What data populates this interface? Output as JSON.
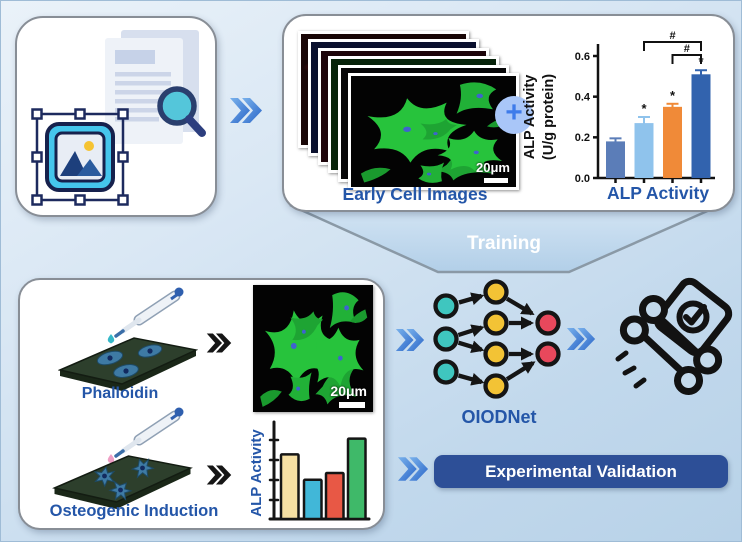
{
  "figure": {
    "type": "scientific workflow diagram",
    "training_label": "Training"
  },
  "top_left_box": {
    "icons": [
      "document-icon",
      "magnifier-icon",
      "image-selection-icon"
    ]
  },
  "top_right_box": {
    "images_label": "Early Cell Images",
    "scale_bar_label": "20μm",
    "plus_glyph": "+"
  },
  "bottom_left_box": {
    "phalloidin_label": "Phalloidin",
    "osteogenic_label": "Osteogenic Induction",
    "scale_bar_label": "20μm",
    "arrow_glyph": "»"
  },
  "network": {
    "label": "OIODNet",
    "node_colors": {
      "input": "#3fc6bf",
      "hidden": "#f3c335",
      "output": "#e8485c"
    }
  },
  "result": {
    "icons": [
      "bone-icon",
      "checkmark-card-icon"
    ]
  },
  "validation": {
    "banner_label": "Experimental Validation"
  },
  "colors": {
    "accent_blue": "#2456a8",
    "banner_bg": "#2d4f97",
    "chevron_blue": "#2b66c8",
    "funnel_fill": "#bdd6ec",
    "background_top": "#eaf2f9",
    "background_bottom": "#b8d2e8"
  },
  "chart_data": [
    {
      "type": "bar",
      "title": "ALP Activity",
      "ylabel": "ALP Activity (U/g protein)",
      "ylabel_lines": [
        "ALP Activity",
        "(U/g protein)"
      ],
      "x_tick_labels": [
        "",
        "",
        "",
        ""
      ],
      "values": [
        0.18,
        0.27,
        0.35,
        0.51
      ],
      "errors": [
        0.015,
        0.03,
        0.015,
        0.02
      ],
      "bar_colors": [
        "#5b7db8",
        "#8fc3ec",
        "#f08a38",
        "#3263ae"
      ],
      "yticks": [
        0.0,
        0.2,
        0.4,
        0.6
      ],
      "ylim": [
        0,
        0.6
      ],
      "grid": false,
      "sig_markers": {
        "asterisk_bars": [
          1,
          2,
          3
        ],
        "asterisk_glyph": "*",
        "brackets": [
          {
            "from": 1,
            "to": 3,
            "label": "#"
          },
          {
            "from": 2,
            "to": 3,
            "label": "#"
          }
        ]
      }
    },
    {
      "type": "bar",
      "title": "",
      "ylabel": "ALP Activity",
      "axis_unlabeled": true,
      "values": [
        0.66,
        0.4,
        0.47,
        0.82
      ],
      "bar_colors": [
        "#f6e0a3",
        "#41b7d8",
        "#e85845",
        "#3fb969"
      ],
      "style": "hand-drawn icon chart, black outlines, tick marks only"
    }
  ]
}
